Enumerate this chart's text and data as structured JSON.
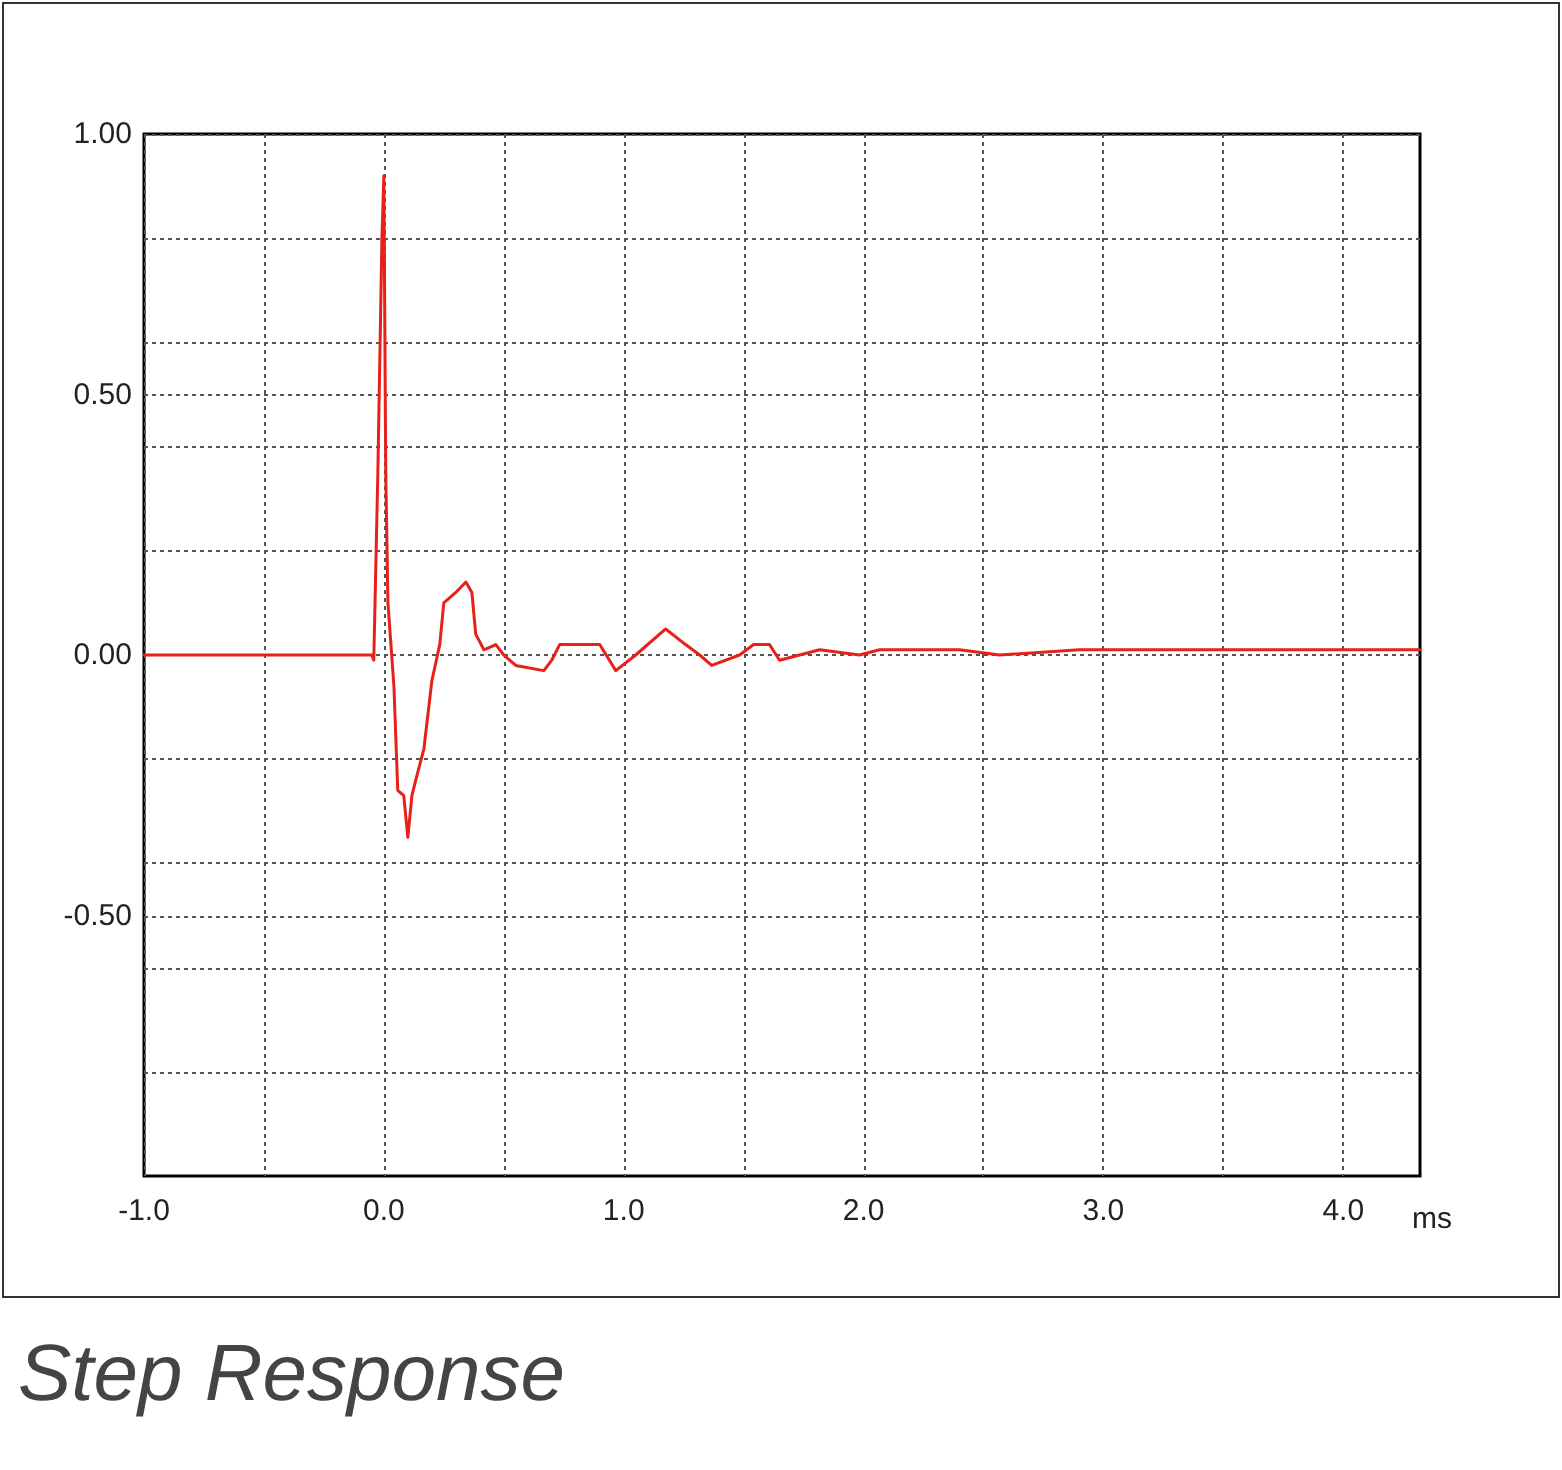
{
  "chart_data": {
    "type": "line",
    "title": "Step Response",
    "xlabel": "ms",
    "x": [
      -1.0,
      -0.05,
      -0.042,
      -0.025,
      -0.008,
      0,
      0.008,
      0.017,
      0.042,
      0.058,
      0.083,
      0.1,
      0.117,
      0.133,
      0.167,
      0.2,
      0.233,
      0.25,
      0.3,
      0.342,
      0.367,
      0.383,
      0.417,
      0.467,
      0.5,
      0.55,
      0.667,
      0.7,
      0.733,
      0.792,
      0.9,
      0.967,
      1.05,
      1.175,
      1.258,
      1.317,
      1.367,
      1.483,
      1.542,
      1.608,
      1.65,
      1.817,
      1.983,
      2.067,
      2.233,
      2.4,
      2.567,
      2.9,
      3.067,
      3.4,
      3.733,
      3.9,
      4.233,
      4.32
    ],
    "series": [
      {
        "color": "#e8201a",
        "values": [
          0,
          0,
          -0.01,
          0.35,
          0.8,
          0.92,
          0.35,
          0.1,
          -0.06,
          -0.26,
          -0.27,
          -0.35,
          -0.27,
          -0.24,
          -0.18,
          -0.05,
          0.02,
          0.1,
          0.12,
          0.14,
          0.12,
          0.04,
          0.01,
          0.02,
          0,
          -0.02,
          -0.03,
          -0.01,
          0.02,
          0.02,
          0.02,
          -0.03,
          0,
          0.05,
          0.02,
          0,
          -0.02,
          0,
          0.02,
          0.02,
          -0.01,
          0.01,
          0,
          0.01,
          0.01,
          0.01,
          0,
          0.01,
          0.01,
          0.01,
          0.01,
          0.01,
          0.01,
          0.01
        ]
      }
    ],
    "xlim": [
      -1.0,
      4.32
    ],
    "xticks": [
      {
        "value": -1,
        "label": "-1.0"
      },
      {
        "value": -0.5,
        "label": null
      },
      {
        "value": 0,
        "label": "0.0"
      },
      {
        "value": 0.5,
        "label": null
      },
      {
        "value": 1,
        "label": "1.0"
      },
      {
        "value": 1.5,
        "label": null
      },
      {
        "value": 2,
        "label": "2.0"
      },
      {
        "value": 2.5,
        "label": null
      },
      {
        "value": 3,
        "label": "3.0"
      },
      {
        "value": 3.5,
        "label": null
      },
      {
        "value": 4,
        "label": "4.0"
      }
    ],
    "ylim": [
      -1.0,
      1.0
    ],
    "yticks": [
      {
        "value": 1,
        "label": "1.00"
      },
      {
        "value": 0.8,
        "label": null
      },
      {
        "value": 0.6,
        "label": null
      },
      {
        "value": 0.5,
        "label": "0.50"
      },
      {
        "value": 0.4,
        "label": null
      },
      {
        "value": 0.2,
        "label": null
      },
      {
        "value": 0,
        "label": "0.00"
      },
      {
        "value": -0.2,
        "label": null
      },
      {
        "value": -0.4,
        "label": null
      },
      {
        "value": -0.5,
        "label": "-0.50"
      },
      {
        "value": -0.6,
        "label": null
      },
      {
        "value": -0.8,
        "label": null
      }
    ],
    "grid": true,
    "marker": "none",
    "line_style": "solid"
  }
}
